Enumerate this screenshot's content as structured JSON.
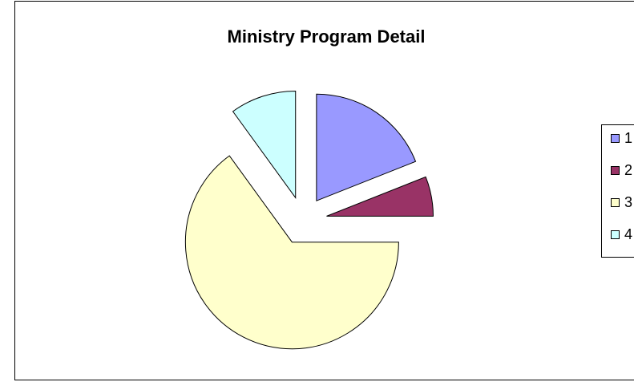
{
  "chart_data": {
    "type": "pie",
    "title": "Ministry Program Detail",
    "categories": [
      "1",
      "2",
      "3",
      "4"
    ],
    "values": [
      19,
      6,
      65,
      10
    ],
    "colors": [
      "#9999ff",
      "#993366",
      "#ffffcc",
      "#ccffff"
    ],
    "exploded": true,
    "legend": "right"
  }
}
